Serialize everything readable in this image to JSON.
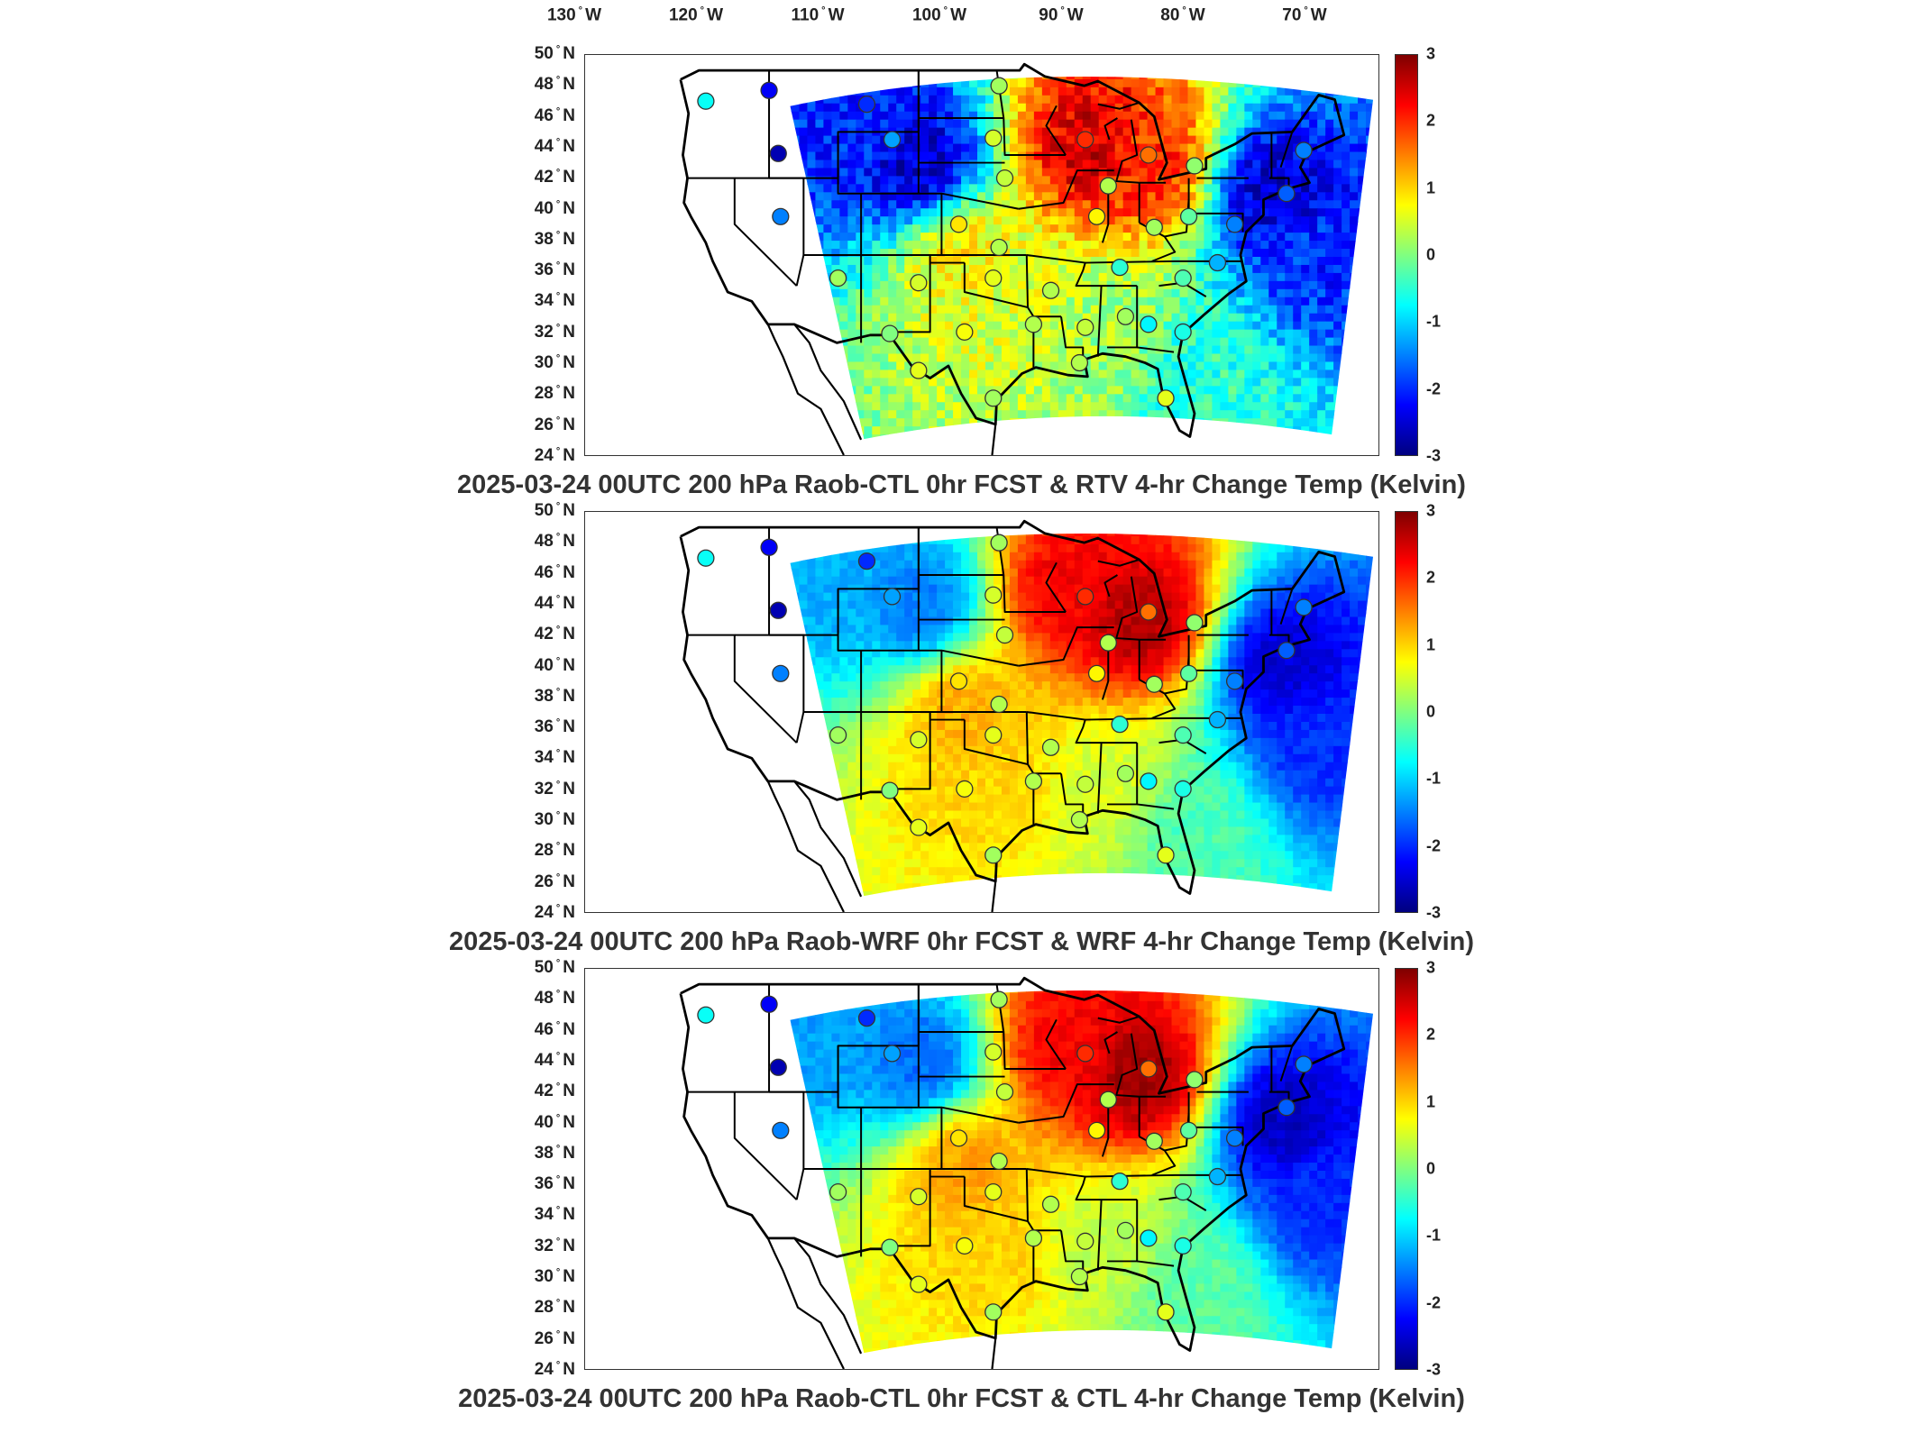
{
  "figure": {
    "lon_labels": [
      "130",
      "120",
      "110",
      "100",
      "90",
      "80",
      "70"
    ],
    "lon_hemisphere": "W",
    "lat_labels": [
      "50",
      "48",
      "46",
      "44",
      "42",
      "40",
      "38",
      "36",
      "34",
      "32",
      "30",
      "28",
      "26",
      "24"
    ],
    "lat_hemisphere": "N",
    "degree_symbol": "°"
  },
  "colorbar": {
    "ticks": [
      "3",
      "2",
      "1",
      "0",
      "-1",
      "-2",
      "-3"
    ],
    "colormap": "jet",
    "colors": [
      "#7f0000",
      "#ff0000",
      "#ff8000",
      "#ffff00",
      "#80ff80",
      "#00ffff",
      "#0080ff",
      "#0000ff",
      "#00007f"
    ]
  },
  "panels": [
    {
      "title": "2025-03-24 00UTC 200 hPa Raob-CTL 0hr FCST & RTV 4-hr Change Temp (Kelvin)"
    },
    {
      "title": "2025-03-24 00UTC 200 hPa Raob-WRF 0hr FCST & WRF 4-hr Change Temp (Kelvin)"
    },
    {
      "title": "2025-03-24 00UTC 200 hPa Raob-CTL 0hr FCST & CTL 4-hr Change Temp (Kelvin)"
    }
  ],
  "chart_data": [
    {
      "type": "heatmap",
      "title": "2025-03-24 00UTC 200 hPa Raob-CTL 0hr FCST & RTV 4-hr Change Temp (Kelvin)",
      "xlabel": "",
      "ylabel": "",
      "xlim": [
        -133,
        -64
      ],
      "ylim": [
        24,
        50
      ],
      "color_range": [
        -3,
        3
      ],
      "field_regions": [
        {
          "lon": -112,
          "lat": 45,
          "value": -2.0
        },
        {
          "lon": -104,
          "lat": 43,
          "value": -2.5
        },
        {
          "lon": -89,
          "lat": 44,
          "value": 2.5
        },
        {
          "lon": -84,
          "lat": 43,
          "value": 2.0
        },
        {
          "lon": -100,
          "lat": 37,
          "value": 0.8
        },
        {
          "lon": -95,
          "lat": 33,
          "value": 0.5
        },
        {
          "lon": -88,
          "lat": 32,
          "value": 0.2
        },
        {
          "lon": -73,
          "lat": 41,
          "value": -2.5
        },
        {
          "lon": -69,
          "lat": 37,
          "value": -2.0
        },
        {
          "lon": -80,
          "lat": 29,
          "value": -0.5
        }
      ],
      "stations": [
        {
          "lon": -122.5,
          "lat": 47.0,
          "value": -0.7
        },
        {
          "lon": -117.0,
          "lat": 47.7,
          "value": -2.3
        },
        {
          "lon": -108.5,
          "lat": 46.8,
          "value": -2.0
        },
        {
          "lon": -106.3,
          "lat": 44.5,
          "value": -1.3
        },
        {
          "lon": -116.2,
          "lat": 43.6,
          "value": -2.7
        },
        {
          "lon": -116.0,
          "lat": 39.5,
          "value": -1.5
        },
        {
          "lon": -97.0,
          "lat": 48.0,
          "value": 0.2
        },
        {
          "lon": -97.5,
          "lat": 44.6,
          "value": 0.5
        },
        {
          "lon": -96.5,
          "lat": 42.0,
          "value": 0.4
        },
        {
          "lon": -89.5,
          "lat": 44.5,
          "value": 2.0
        },
        {
          "lon": -84.0,
          "lat": 43.5,
          "value": 1.6
        },
        {
          "lon": -80.0,
          "lat": 42.8,
          "value": 0.1
        },
        {
          "lon": -87.5,
          "lat": 41.5,
          "value": 0.3
        },
        {
          "lon": -88.5,
          "lat": 39.5,
          "value": 0.8
        },
        {
          "lon": -83.5,
          "lat": 38.8,
          "value": 0.2
        },
        {
          "lon": -80.5,
          "lat": 39.5,
          "value": -0.2
        },
        {
          "lon": -100.5,
          "lat": 39.0,
          "value": 0.9
        },
        {
          "lon": -97.0,
          "lat": 37.5,
          "value": 0.3
        },
        {
          "lon": -104.0,
          "lat": 35.2,
          "value": 0.5
        },
        {
          "lon": -111.0,
          "lat": 35.5,
          "value": 0.2
        },
        {
          "lon": -97.5,
          "lat": 35.5,
          "value": 0.6
        },
        {
          "lon": -92.5,
          "lat": 34.7,
          "value": 0.3
        },
        {
          "lon": -86.5,
          "lat": 36.2,
          "value": -0.5
        },
        {
          "lon": -81.0,
          "lat": 35.5,
          "value": -0.3
        },
        {
          "lon": -78.0,
          "lat": 36.5,
          "value": -1.2
        },
        {
          "lon": -76.5,
          "lat": 39.0,
          "value": -1.5
        },
        {
          "lon": -100.0,
          "lat": 32.0,
          "value": 0.7
        },
        {
          "lon": -94.0,
          "lat": 32.5,
          "value": 0.3
        },
        {
          "lon": -89.5,
          "lat": 32.3,
          "value": 0.4
        },
        {
          "lon": -86.0,
          "lat": 33.0,
          "value": 0.2
        },
        {
          "lon": -84.0,
          "lat": 32.5,
          "value": -0.8
        },
        {
          "lon": -81.0,
          "lat": 32.0,
          "value": -0.6
        },
        {
          "lon": -106.5,
          "lat": 31.9,
          "value": 0.0
        },
        {
          "lon": -104.0,
          "lat": 29.5,
          "value": 0.6
        },
        {
          "lon": -97.5,
          "lat": 27.7,
          "value": 0.2
        },
        {
          "lon": -90.0,
          "lat": 30.0,
          "value": 0.3
        },
        {
          "lon": -82.5,
          "lat": 27.7,
          "value": 0.6
        },
        {
          "lon": -70.5,
          "lat": 43.8,
          "value": -1.5
        },
        {
          "lon": -72.0,
          "lat": 41.0,
          "value": -1.7
        }
      ]
    },
    {
      "type": "heatmap",
      "title": "2025-03-24 00UTC 200 hPa Raob-WRF 0hr FCST & WRF 4-hr Change Temp (Kelvin)",
      "xlabel": "",
      "ylabel": "",
      "xlim": [
        -133,
        -64
      ],
      "ylim": [
        24,
        50
      ],
      "color_range": [
        -3,
        3
      ],
      "field_regions": [
        {
          "lon": -112,
          "lat": 45,
          "value": -1.2
        },
        {
          "lon": -104,
          "lat": 44,
          "value": -1.5
        },
        {
          "lon": -91,
          "lat": 45,
          "value": 2.3
        },
        {
          "lon": -85,
          "lat": 43,
          "value": 2.7
        },
        {
          "lon": -100,
          "lat": 37,
          "value": 1.2
        },
        {
          "lon": -97,
          "lat": 32,
          "value": 1.0
        },
        {
          "lon": -88,
          "lat": 32,
          "value": 0.5
        },
        {
          "lon": -72,
          "lat": 40,
          "value": -2.5
        },
        {
          "lon": -69,
          "lat": 35,
          "value": -2.0
        },
        {
          "lon": -80,
          "lat": 29,
          "value": -0.3
        }
      ],
      "stations": [
        {
          "lon": -122.5,
          "lat": 47.0,
          "value": -0.7
        },
        {
          "lon": -117.0,
          "lat": 47.7,
          "value": -2.3
        },
        {
          "lon": -108.5,
          "lat": 46.8,
          "value": -2.0
        },
        {
          "lon": -106.3,
          "lat": 44.5,
          "value": -1.3
        },
        {
          "lon": -116.2,
          "lat": 43.6,
          "value": -2.7
        },
        {
          "lon": -116.0,
          "lat": 39.5,
          "value": -1.5
        },
        {
          "lon": -97.0,
          "lat": 48.0,
          "value": 0.2
        },
        {
          "lon": -97.5,
          "lat": 44.6,
          "value": 0.5
        },
        {
          "lon": -96.5,
          "lat": 42.0,
          "value": 0.4
        },
        {
          "lon": -89.5,
          "lat": 44.5,
          "value": 2.0
        },
        {
          "lon": -84.0,
          "lat": 43.5,
          "value": 1.6
        },
        {
          "lon": -80.0,
          "lat": 42.8,
          "value": 0.1
        },
        {
          "lon": -87.5,
          "lat": 41.5,
          "value": 0.3
        },
        {
          "lon": -88.5,
          "lat": 39.5,
          "value": 0.8
        },
        {
          "lon": -83.5,
          "lat": 38.8,
          "value": 0.2
        },
        {
          "lon": -80.5,
          "lat": 39.5,
          "value": -0.2
        },
        {
          "lon": -100.5,
          "lat": 39.0,
          "value": 0.9
        },
        {
          "lon": -97.0,
          "lat": 37.5,
          "value": 0.3
        },
        {
          "lon": -104.0,
          "lat": 35.2,
          "value": 0.5
        },
        {
          "lon": -111.0,
          "lat": 35.5,
          "value": 0.2
        },
        {
          "lon": -97.5,
          "lat": 35.5,
          "value": 0.6
        },
        {
          "lon": -92.5,
          "lat": 34.7,
          "value": 0.3
        },
        {
          "lon": -86.5,
          "lat": 36.2,
          "value": -0.5
        },
        {
          "lon": -81.0,
          "lat": 35.5,
          "value": -0.3
        },
        {
          "lon": -78.0,
          "lat": 36.5,
          "value": -1.2
        },
        {
          "lon": -76.5,
          "lat": 39.0,
          "value": -1.5
        },
        {
          "lon": -100.0,
          "lat": 32.0,
          "value": 0.7
        },
        {
          "lon": -94.0,
          "lat": 32.5,
          "value": 0.3
        },
        {
          "lon": -89.5,
          "lat": 32.3,
          "value": 0.4
        },
        {
          "lon": -86.0,
          "lat": 33.0,
          "value": 0.2
        },
        {
          "lon": -84.0,
          "lat": 32.5,
          "value": -0.8
        },
        {
          "lon": -81.0,
          "lat": 32.0,
          "value": -0.6
        },
        {
          "lon": -106.5,
          "lat": 31.9,
          "value": 0.0
        },
        {
          "lon": -104.0,
          "lat": 29.5,
          "value": 0.6
        },
        {
          "lon": -97.5,
          "lat": 27.7,
          "value": 0.2
        },
        {
          "lon": -90.0,
          "lat": 30.0,
          "value": 0.3
        },
        {
          "lon": -82.5,
          "lat": 27.7,
          "value": 0.6
        },
        {
          "lon": -70.5,
          "lat": 43.8,
          "value": -1.5
        },
        {
          "lon": -72.0,
          "lat": 41.0,
          "value": -1.7
        }
      ]
    },
    {
      "type": "heatmap",
      "title": "2025-03-24 00UTC 200 hPa Raob-CTL 0hr FCST & CTL 4-hr Change Temp (Kelvin)",
      "xlabel": "",
      "ylabel": "",
      "xlim": [
        -133,
        -64
      ],
      "ylim": [
        24,
        50
      ],
      "color_range": [
        -3,
        3
      ],
      "field_regions": [
        {
          "lon": -112,
          "lat": 45,
          "value": -1.3
        },
        {
          "lon": -104,
          "lat": 44,
          "value": -1.6
        },
        {
          "lon": -91,
          "lat": 45,
          "value": 2.3
        },
        {
          "lon": -85,
          "lat": 43,
          "value": 2.8
        },
        {
          "lon": -100,
          "lat": 37,
          "value": 1.3
        },
        {
          "lon": -97,
          "lat": 32,
          "value": 1.0
        },
        {
          "lon": -88,
          "lat": 32,
          "value": 0.4
        },
        {
          "lon": -72,
          "lat": 40,
          "value": -2.6
        },
        {
          "lon": -69,
          "lat": 35,
          "value": -2.0
        },
        {
          "lon": -80,
          "lat": 29,
          "value": -0.2
        }
      ],
      "stations": [
        {
          "lon": -122.5,
          "lat": 47.0,
          "value": -0.7
        },
        {
          "lon": -117.0,
          "lat": 47.7,
          "value": -2.3
        },
        {
          "lon": -108.5,
          "lat": 46.8,
          "value": -2.0
        },
        {
          "lon": -106.3,
          "lat": 44.5,
          "value": -1.3
        },
        {
          "lon": -116.2,
          "lat": 43.6,
          "value": -2.7
        },
        {
          "lon": -116.0,
          "lat": 39.5,
          "value": -1.5
        },
        {
          "lon": -97.0,
          "lat": 48.0,
          "value": 0.2
        },
        {
          "lon": -97.5,
          "lat": 44.6,
          "value": 0.5
        },
        {
          "lon": -96.5,
          "lat": 42.0,
          "value": 0.4
        },
        {
          "lon": -89.5,
          "lat": 44.5,
          "value": 2.0
        },
        {
          "lon": -84.0,
          "lat": 43.5,
          "value": 1.6
        },
        {
          "lon": -80.0,
          "lat": 42.8,
          "value": 0.1
        },
        {
          "lon": -87.5,
          "lat": 41.5,
          "value": 0.3
        },
        {
          "lon": -88.5,
          "lat": 39.5,
          "value": 0.8
        },
        {
          "lon": -83.5,
          "lat": 38.8,
          "value": 0.2
        },
        {
          "lon": -80.5,
          "lat": 39.5,
          "value": -0.2
        },
        {
          "lon": -100.5,
          "lat": 39.0,
          "value": 0.9
        },
        {
          "lon": -97.0,
          "lat": 37.5,
          "value": 0.3
        },
        {
          "lon": -104.0,
          "lat": 35.2,
          "value": 0.5
        },
        {
          "lon": -111.0,
          "lat": 35.5,
          "value": 0.2
        },
        {
          "lon": -97.5,
          "lat": 35.5,
          "value": 0.6
        },
        {
          "lon": -92.5,
          "lat": 34.7,
          "value": 0.3
        },
        {
          "lon": -86.5,
          "lat": 36.2,
          "value": -0.5
        },
        {
          "lon": -81.0,
          "lat": 35.5,
          "value": -0.3
        },
        {
          "lon": -78.0,
          "lat": 36.5,
          "value": -1.2
        },
        {
          "lon": -76.5,
          "lat": 39.0,
          "value": -1.5
        },
        {
          "lon": -100.0,
          "lat": 32.0,
          "value": 0.7
        },
        {
          "lon": -94.0,
          "lat": 32.5,
          "value": 0.3
        },
        {
          "lon": -89.5,
          "lat": 32.3,
          "value": 0.4
        },
        {
          "lon": -86.0,
          "lat": 33.0,
          "value": 0.2
        },
        {
          "lon": -84.0,
          "lat": 32.5,
          "value": -0.8
        },
        {
          "lon": -81.0,
          "lat": 32.0,
          "value": -0.6
        },
        {
          "lon": -106.5,
          "lat": 31.9,
          "value": 0.0
        },
        {
          "lon": -104.0,
          "lat": 29.5,
          "value": 0.6
        },
        {
          "lon": -97.5,
          "lat": 27.7,
          "value": 0.2
        },
        {
          "lon": -90.0,
          "lat": 30.0,
          "value": 0.3
        },
        {
          "lon": -82.5,
          "lat": 27.7,
          "value": 0.6
        },
        {
          "lon": -70.5,
          "lat": 43.8,
          "value": -1.5
        },
        {
          "lon": -72.0,
          "lat": 41.0,
          "value": -1.7
        }
      ]
    }
  ]
}
